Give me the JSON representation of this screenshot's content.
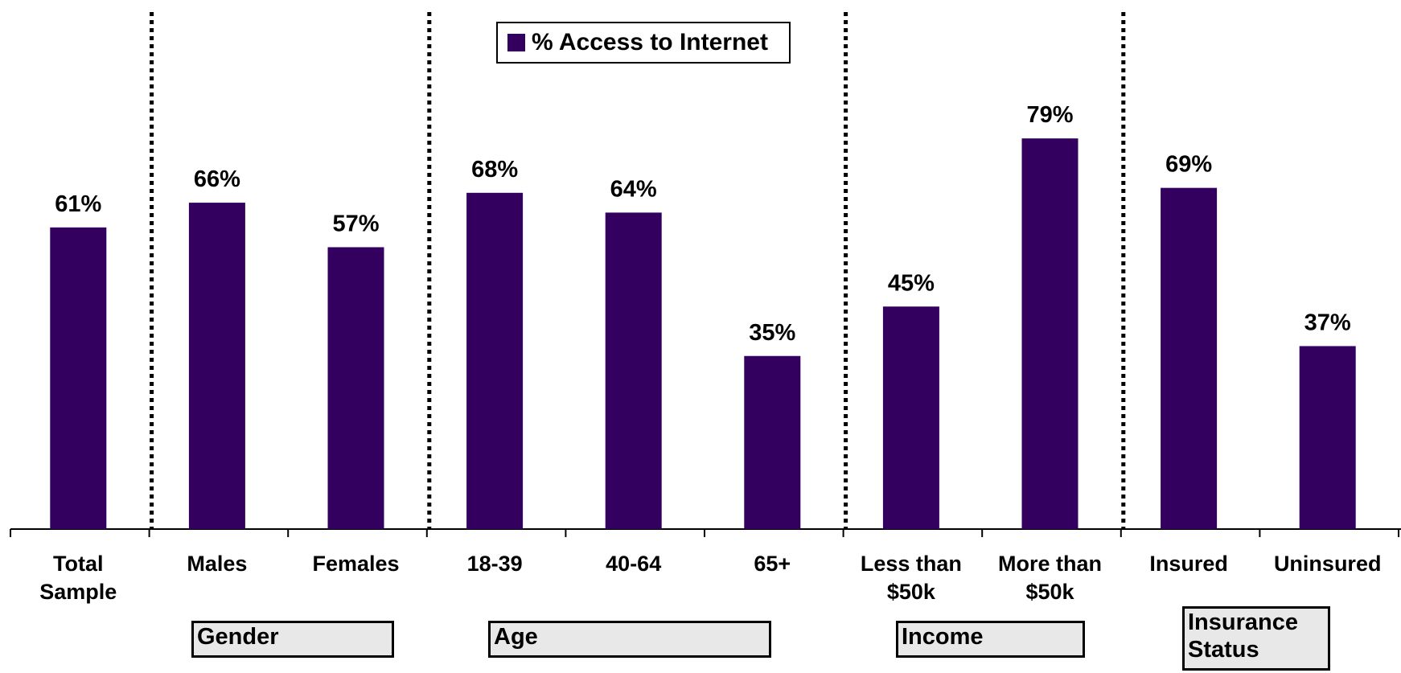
{
  "chart_data": {
    "type": "bar",
    "categories": [
      "Total\nSample",
      "Males",
      "Females",
      "18-39",
      "40-64",
      "65+",
      "Less than\n$50k",
      "More than\n$50k",
      "Insured",
      "Uninsured"
    ],
    "series": [
      {
        "name": "% Access to Internet",
        "values": [
          61,
          66,
          57,
          68,
          64,
          35,
          45,
          79,
          69,
          37
        ],
        "color": "#33005f"
      }
    ],
    "value_labels": [
      "61%",
      "66%",
      "57%",
      "68%",
      "64%",
      "35%",
      "45%",
      "79%",
      "69%",
      "37%"
    ],
    "ylim": [
      0,
      100
    ],
    "grid": false,
    "legend": {
      "position": "top-center",
      "label": "% Access to Internet"
    },
    "groups": [
      {
        "label": "Gender",
        "categories": [
          1,
          2
        ]
      },
      {
        "label": "Age",
        "categories": [
          3,
          4,
          5
        ]
      },
      {
        "label": "Income",
        "categories": [
          6,
          7
        ]
      },
      {
        "label": "Insurance\nStatus",
        "categories": [
          8,
          9
        ]
      }
    ],
    "separators_after_category": [
      0,
      2,
      5,
      7
    ]
  }
}
